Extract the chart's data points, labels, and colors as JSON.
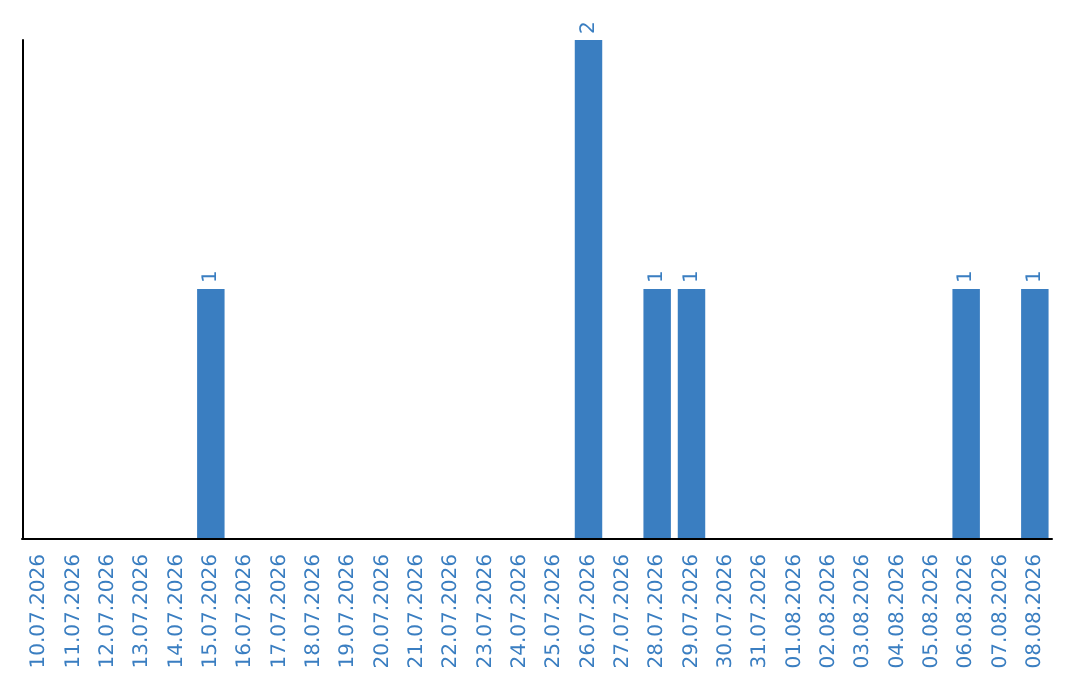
{
  "chart_data": {
    "type": "bar",
    "categories": [
      "10.07.2026",
      "11.07.2026",
      "12.07.2026",
      "13.07.2026",
      "14.07.2026",
      "15.07.2026",
      "16.07.2026",
      "17.07.2026",
      "18.07.2026",
      "19.07.2026",
      "20.07.2026",
      "21.07.2026",
      "22.07.2026",
      "23.07.2026",
      "24.07.2026",
      "25.07.2026",
      "26.07.2026",
      "27.07.2026",
      "28.07.2026",
      "29.07.2026",
      "30.07.2026",
      "31.07.2026",
      "01.08.2026",
      "02.08.2026",
      "03.08.2026",
      "04.08.2026",
      "05.08.2026",
      "06.08.2026",
      "07.08.2026",
      "08.08.2026"
    ],
    "values": [
      0,
      0,
      0,
      0,
      0,
      1,
      0,
      0,
      0,
      0,
      0,
      0,
      0,
      0,
      0,
      0,
      2,
      0,
      1,
      1,
      0,
      0,
      0,
      0,
      0,
      0,
      0,
      1,
      0,
      1
    ],
    "value_labels": [
      null,
      null,
      null,
      null,
      null,
      "1",
      null,
      null,
      null,
      null,
      null,
      null,
      null,
      null,
      null,
      null,
      "2",
      null,
      "1",
      "1",
      null,
      null,
      null,
      null,
      null,
      null,
      null,
      "1",
      null,
      "1"
    ],
    "color": "#3a7ec1",
    "tick_labels": "x"
  }
}
